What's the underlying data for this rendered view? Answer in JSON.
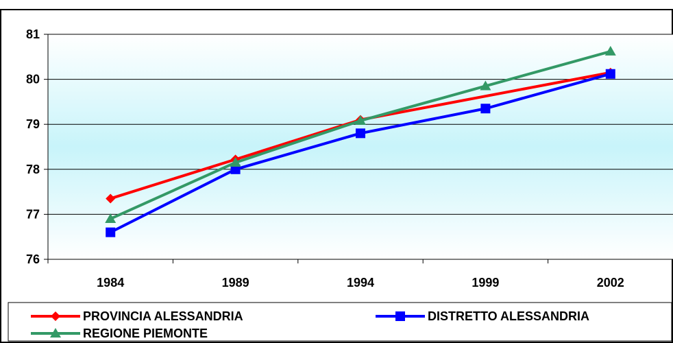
{
  "chart_data": {
    "type": "line",
    "title": "",
    "xlabel": "",
    "ylabel": "",
    "categories": [
      "1984",
      "1989",
      "1994",
      "1999",
      "2002"
    ],
    "ylim": [
      76,
      81
    ],
    "yticks": [
      "76",
      "77",
      "78",
      "79",
      "80",
      "81"
    ],
    "grid": true,
    "legend_position": "bottom",
    "series": [
      {
        "name": "PROVINCIA ALESSANDRIA",
        "color": "#ff0000",
        "marker": "diamond",
        "values": [
          77.35,
          78.22,
          79.1,
          null,
          80.15
        ]
      },
      {
        "name": "DISTRETTO ALESSANDRIA",
        "color": "#0000ff",
        "marker": "square",
        "values": [
          76.6,
          78.0,
          78.8,
          79.35,
          80.12
        ]
      },
      {
        "name": "REGIONE PIEMONTE",
        "color": "#339966",
        "marker": "triangle",
        "values": [
          76.9,
          78.15,
          79.08,
          79.85,
          80.62
        ]
      }
    ]
  }
}
